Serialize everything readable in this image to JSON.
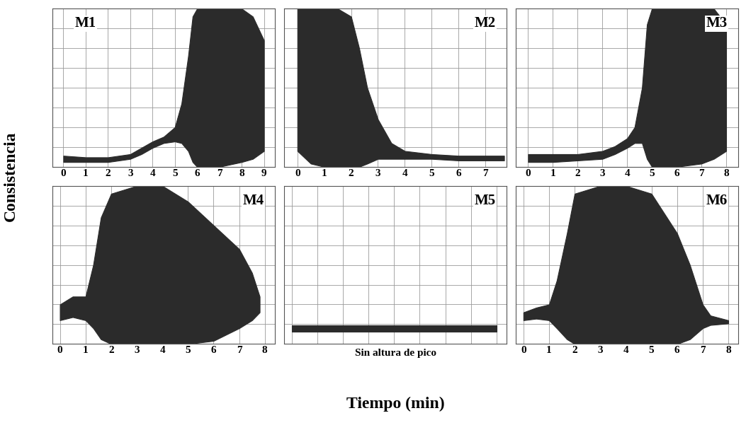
{
  "x_label": "Tiempo (min)",
  "y_label": "Consistencia",
  "chart_data": [
    {
      "type": "area",
      "title": "M1",
      "color": "#2b2b2b",
      "grid": true,
      "tick_labels": "x",
      "x": [
        0,
        1,
        2,
        3,
        3.5,
        4,
        4.5,
        5,
        5.3,
        5.6,
        5.8,
        6,
        7,
        8,
        8.5,
        9
      ],
      "upper": [
        0.7,
        0.6,
        0.6,
        0.8,
        1.2,
        1.6,
        1.9,
        2.5,
        4,
        7,
        9.5,
        10,
        10,
        10,
        9.5,
        8
      ],
      "lower": [
        0.3,
        0.3,
        0.3,
        0.5,
        0.8,
        1.2,
        1.5,
        1.6,
        1.5,
        1,
        0.3,
        0,
        0,
        0.3,
        0.5,
        1
      ],
      "xlim": [
        -0.5,
        9.5
      ],
      "ylim": [
        0,
        10
      ],
      "xticks": [
        0,
        1,
        2,
        3,
        4,
        5,
        6,
        7,
        8,
        9
      ],
      "yticks": [
        0,
        1.25,
        2.5,
        3.75,
        5,
        6.25,
        7.5,
        8.75,
        10
      ]
    },
    {
      "type": "area",
      "title": "M2",
      "color": "#2b2b2b",
      "grid": true,
      "tick_labels": "x",
      "x": [
        0,
        0.5,
        1,
        1.5,
        2,
        2.3,
        2.6,
        3,
        3.5,
        4,
        5,
        6,
        7,
        7.7
      ],
      "upper": [
        10,
        10,
        10,
        10,
        9.5,
        7.5,
        5,
        3,
        1.5,
        1,
        0.8,
        0.7,
        0.7,
        0.7
      ],
      "lower": [
        1,
        0.2,
        0,
        0,
        0,
        0,
        0.2,
        0.5,
        0.5,
        0.5,
        0.5,
        0.4,
        0.4,
        0.4
      ],
      "xlim": [
        -0.5,
        7.8
      ],
      "ylim": [
        0,
        10
      ],
      "xticks": [
        0,
        1,
        2,
        3,
        4,
        5,
        6,
        7
      ],
      "yticks": [
        0,
        1.25,
        2.5,
        3.75,
        5,
        6.25,
        7.5,
        8.75,
        10
      ]
    },
    {
      "type": "area",
      "title": "M3",
      "color": "#2b2b2b",
      "grid": true,
      "tick_labels": "x",
      "x": [
        0,
        1,
        2,
        3,
        3.5,
        4,
        4.3,
        4.6,
        4.8,
        5,
        6,
        7,
        7.5,
        8
      ],
      "upper": [
        0.8,
        0.8,
        0.8,
        1,
        1.3,
        1.8,
        2.5,
        5,
        9,
        10,
        10,
        10,
        10,
        9
      ],
      "lower": [
        0.3,
        0.3,
        0.4,
        0.5,
        0.8,
        1.2,
        1.5,
        1.5,
        0.5,
        0,
        0,
        0.2,
        0.5,
        1
      ],
      "xlim": [
        -0.5,
        8.5
      ],
      "ylim": [
        0,
        10
      ],
      "xticks": [
        0,
        1,
        2,
        3,
        4,
        5,
        6,
        7,
        8
      ],
      "yticks": [
        0,
        1.25,
        2.5,
        3.75,
        5,
        6.25,
        7.5,
        8.75,
        10
      ]
    },
    {
      "type": "area",
      "title": "M4",
      "color": "#2b2b2b",
      "grid": true,
      "tick_labels": "x",
      "x": [
        0,
        0.5,
        1,
        1.3,
        1.6,
        2,
        3,
        4,
        5,
        6,
        7,
        7.5,
        7.8
      ],
      "upper": [
        2.5,
        3,
        3,
        5,
        8,
        9.5,
        10,
        10,
        9,
        7.5,
        6,
        4.5,
        3
      ],
      "lower": [
        1.5,
        1.7,
        1.5,
        1,
        0.3,
        0,
        0,
        0,
        0,
        0.2,
        1,
        1.5,
        2
      ],
      "xlim": [
        -0.3,
        8.4
      ],
      "ylim": [
        0,
        10
      ],
      "xticks": [
        0,
        1,
        2,
        3,
        4,
        5,
        6,
        7,
        8
      ],
      "yticks": [
        0,
        1.25,
        2.5,
        3.75,
        5,
        6.25,
        7.5,
        8.75,
        10
      ]
    },
    {
      "type": "area",
      "title": "M5",
      "color": "#2b2b2b",
      "grid": true,
      "tick_labels": false,
      "annotation": "Sin altura de pico",
      "x": [
        0,
        1,
        2,
        3,
        4,
        5,
        6,
        7,
        8
      ],
      "upper": [
        1.2,
        1.2,
        1.2,
        1.2,
        1.2,
        1.2,
        1.2,
        1.2,
        1.2
      ],
      "lower": [
        0.8,
        0.8,
        0.8,
        0.8,
        0.8,
        0.8,
        0.8,
        0.8,
        0.8
      ],
      "xlim": [
        -0.3,
        8.4
      ],
      "ylim": [
        0,
        10
      ],
      "xticks": [
        0,
        1,
        2,
        3,
        4,
        5,
        6,
        7,
        8
      ],
      "yticks": [
        0,
        1.25,
        2.5,
        3.75,
        5,
        6.25,
        7.5,
        8.75,
        10
      ]
    },
    {
      "type": "area",
      "title": "M6",
      "color": "#2b2b2b",
      "grid": true,
      "tick_labels": "x",
      "x": [
        0,
        0.5,
        1,
        1.3,
        1.7,
        2,
        3,
        4,
        5,
        6,
        6.5,
        7,
        7.3,
        8
      ],
      "upper": [
        2,
        2.3,
        2.5,
        4,
        7,
        9.5,
        10,
        10,
        9.5,
        7,
        5,
        2.5,
        1.8,
        1.5
      ],
      "lower": [
        1.5,
        1.6,
        1.5,
        1,
        0.3,
        0,
        0,
        0,
        0,
        0,
        0.3,
        1,
        1.2,
        1.3
      ],
      "xlim": [
        -0.3,
        8.4
      ],
      "ylim": [
        0,
        10
      ],
      "xticks": [
        0,
        1,
        2,
        3,
        4,
        5,
        6,
        7,
        8
      ],
      "yticks": [
        0,
        1.25,
        2.5,
        3.75,
        5,
        6.25,
        7.5,
        8.75,
        10
      ]
    }
  ]
}
